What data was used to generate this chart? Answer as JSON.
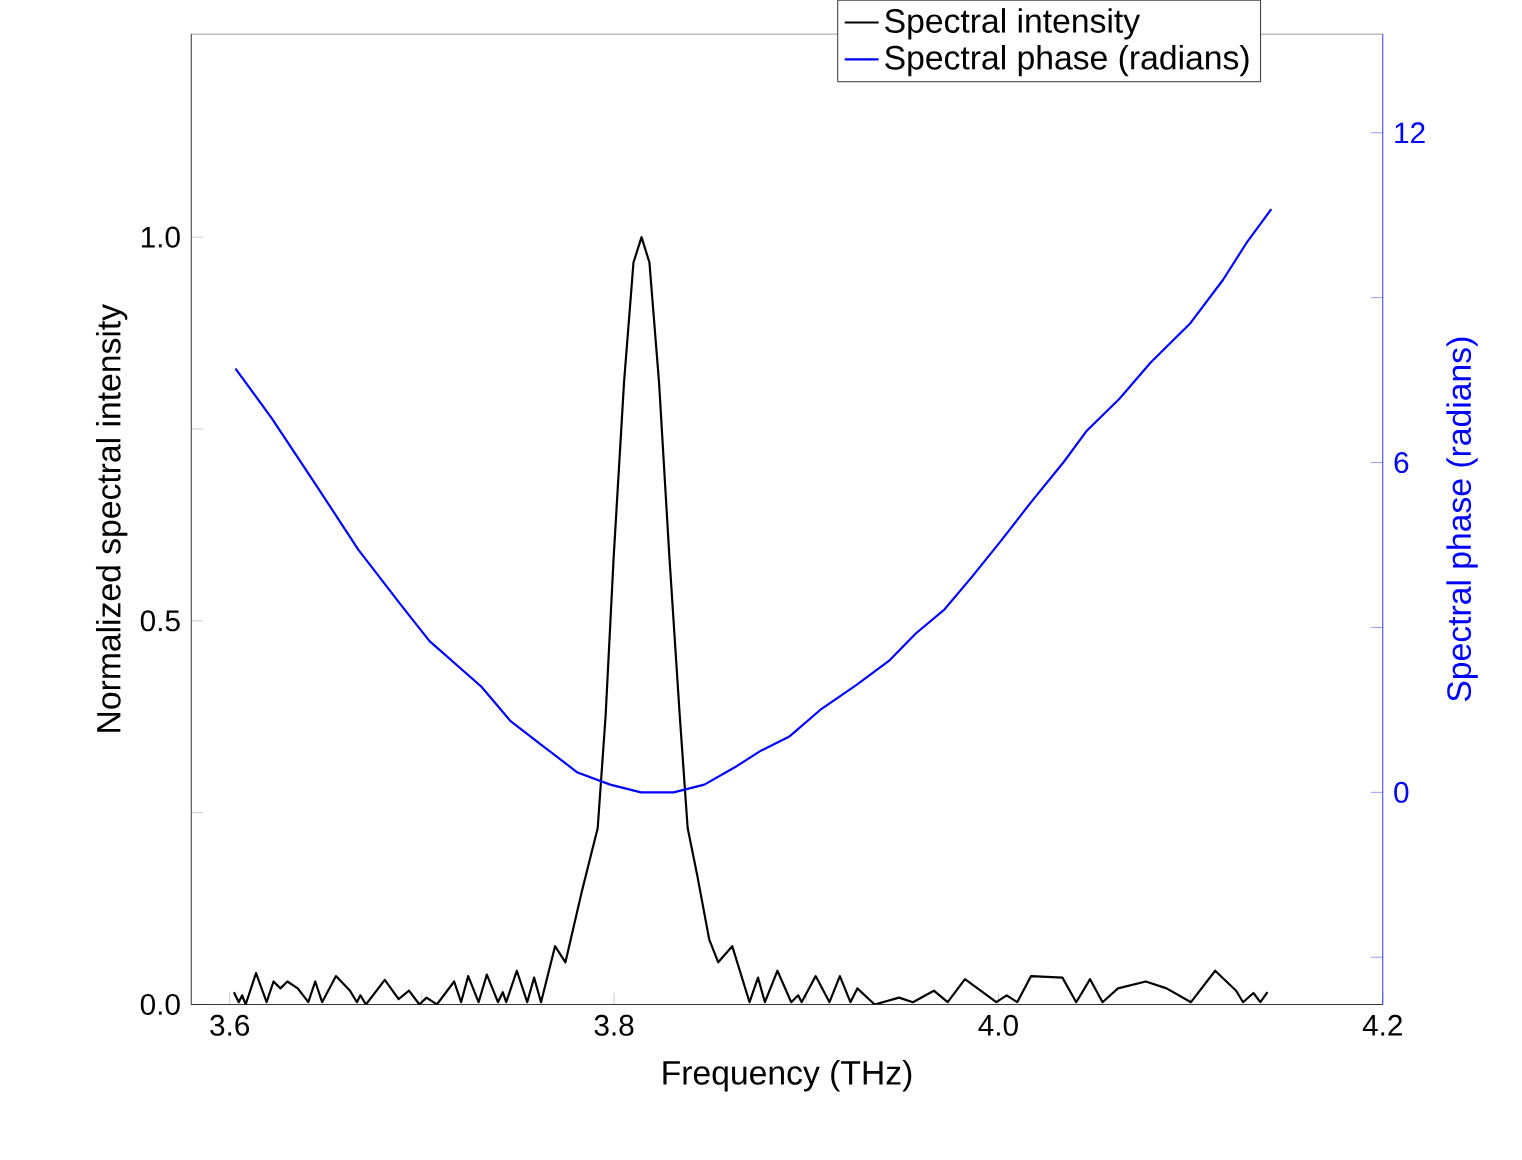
{
  "chart_data": {
    "type": "line",
    "xlabel": "Frequency (THz)",
    "ylabel": "Normalized spectral intensity",
    "y2label": "Spectral phase (radians)",
    "xlim": [
      3.58,
      4.2
    ],
    "xticks": [
      3.6,
      {
        "value": 3.7,
        "label": null
      },
      3.8,
      {
        "value": 3.9,
        "label": null
      },
      {
        "value": 4.0,
        "label": "4.0"
      },
      {
        "value": 4.1,
        "label": null
      },
      4.2
    ],
    "ylim": [
      0,
      1.265
    ],
    "yticks": [
      {
        "value": 0,
        "label": "0.0"
      },
      {
        "value": 0.25,
        "label": null
      },
      0.5,
      {
        "value": 0.75,
        "label": null
      },
      {
        "value": 1.0,
        "label": "1.0"
      }
    ],
    "y2lim": [
      -3.86,
      13.8
    ],
    "y2ticks": [
      {
        "value": -3,
        "label": null
      },
      0,
      {
        "value": 3,
        "label": null
      },
      6,
      {
        "value": 9,
        "label": null
      },
      12
    ],
    "legend": "top",
    "grid": false,
    "marker": "none",
    "line_style": "solid",
    "series": [
      {
        "name": "Spectral intensity",
        "color": "#000000",
        "x": [
          3.6022,
          3.6047,
          3.6065,
          3.6083,
          3.6137,
          3.6192,
          3.6228,
          3.6264,
          3.63,
          3.6354,
          3.6409,
          3.6445,
          3.6481,
          3.6553,
          3.6626,
          3.6662,
          3.668,
          3.6709,
          3.6807,
          3.6879,
          3.6933,
          3.6987,
          3.7024,
          3.7078,
          3.7168,
          3.7204,
          3.7241,
          3.7295,
          3.7338,
          3.7396,
          3.7421,
          3.7439,
          3.7494,
          3.7548,
          3.7584,
          3.762,
          3.7693,
          3.7747,
          3.7832,
          3.7874,
          3.7915,
          3.7956,
          3.7998,
          3.8052,
          3.8101,
          3.8143,
          3.8184,
          3.8234,
          3.8288,
          3.8342,
          3.8383,
          3.8433,
          3.8495,
          3.8542,
          3.8615,
          3.8705,
          3.8749,
          3.8785,
          3.885,
          3.8922,
          3.8958,
          3.8976,
          3.9049,
          3.9121,
          3.9175,
          3.923,
          3.9266,
          3.9356,
          3.9483,
          3.9555,
          3.9664,
          3.9736,
          3.9826,
          3.9989,
          4.0043,
          4.0098,
          4.017,
          4.0333,
          4.0405,
          4.0477,
          4.0542,
          4.0622,
          4.0767,
          4.0875,
          4.1002,
          4.1128,
          4.1237,
          4.1273,
          4.1327,
          4.1363,
          4.14
        ],
        "values": [
          0.016,
          0.003,
          0.012,
          0,
          0.041,
          0.003,
          0.03,
          0.021,
          0.03,
          0.021,
          0.003,
          0.03,
          0.003,
          0.037,
          0.018,
          0.003,
          0.012,
          0,
          0.032,
          0.007,
          0.018,
          0,
          0.009,
          0,
          0.03,
          0.003,
          0.037,
          0.003,
          0.039,
          0.003,
          0.016,
          0.003,
          0.044,
          0.003,
          0.035,
          0.003,
          0.076,
          0.055,
          0.147,
          0.189,
          0.23,
          0.376,
          0.583,
          0.811,
          0.967,
          1.0,
          0.967,
          0.811,
          0.583,
          0.376,
          0.23,
          0.168,
          0.085,
          0.055,
          0.076,
          0.003,
          0.035,
          0.003,
          0.044,
          0.003,
          0.012,
          0.003,
          0.037,
          0.003,
          0.037,
          0.003,
          0.021,
          0,
          0.009,
          0.003,
          0.018,
          0.003,
          0.033,
          0.003,
          0.012,
          0.003,
          0.037,
          0.035,
          0.003,
          0.033,
          0.003,
          0.021,
          0.03,
          0.021,
          0.003,
          0.044,
          0.018,
          0.003,
          0.015,
          0.003,
          0.016
        ]
      },
      {
        "name": "Spectral phase (radians)",
        "color": "#0000ff",
        "axis": "y2",
        "x": [
          3.603,
          3.622,
          3.644,
          3.667,
          3.69,
          3.704,
          3.731,
          3.746,
          3.762,
          3.781,
          3.798,
          3.814,
          3.831,
          3.847,
          3.864,
          3.876,
          3.891,
          3.908,
          3.926,
          3.943,
          3.957,
          3.972,
          3.986,
          4.001,
          4.017,
          4.034,
          4.046,
          4.063,
          4.079,
          4.1,
          4.117,
          4.129,
          4.142
        ],
        "values": [
          7.71,
          6.8,
          5.64,
          4.41,
          3.37,
          2.75,
          1.92,
          1.3,
          0.87,
          0.36,
          0.14,
          0,
          0,
          0.14,
          0.48,
          0.75,
          1.01,
          1.52,
          1.95,
          2.39,
          2.89,
          3.33,
          3.91,
          4.56,
          5.28,
          6.01,
          6.58,
          7.16,
          7.81,
          8.54,
          9.33,
          9.99,
          10.61
        ]
      }
    ]
  }
}
